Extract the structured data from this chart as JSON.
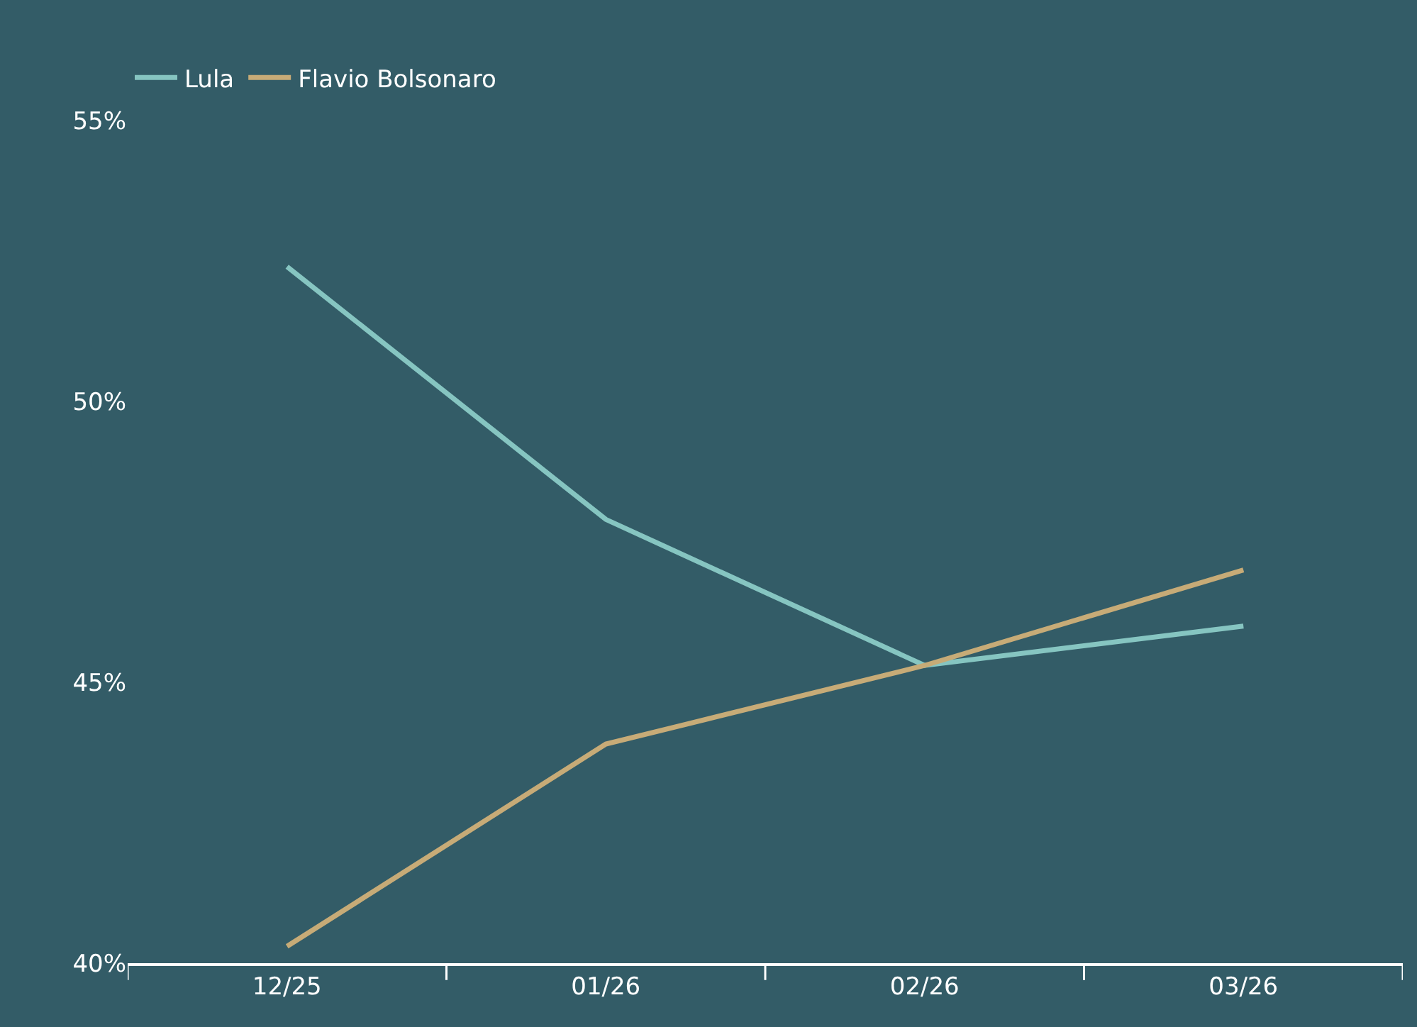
{
  "chart_data": {
    "type": "line",
    "categories": [
      "12/25",
      "01/26",
      "02/26",
      "03/26"
    ],
    "series": [
      {
        "name": "Lula",
        "color": "#86c5c1",
        "values": [
          52.4,
          47.9,
          45.3,
          46.0
        ]
      },
      {
        "name": "Flavio Bolsonaro",
        "color": "#c7ab77",
        "values": [
          40.3,
          43.9,
          45.3,
          47.0
        ]
      }
    ],
    "ylim": [
      40,
      55
    ],
    "yticks": [
      {
        "value": 40,
        "label": "40%"
      },
      {
        "value": 45,
        "label": "45%"
      },
      {
        "value": 50,
        "label": "50%"
      },
      {
        "value": 55,
        "label": "55%"
      }
    ],
    "grid": false,
    "legend": "top left",
    "marker": "none",
    "line_style": "solid"
  }
}
